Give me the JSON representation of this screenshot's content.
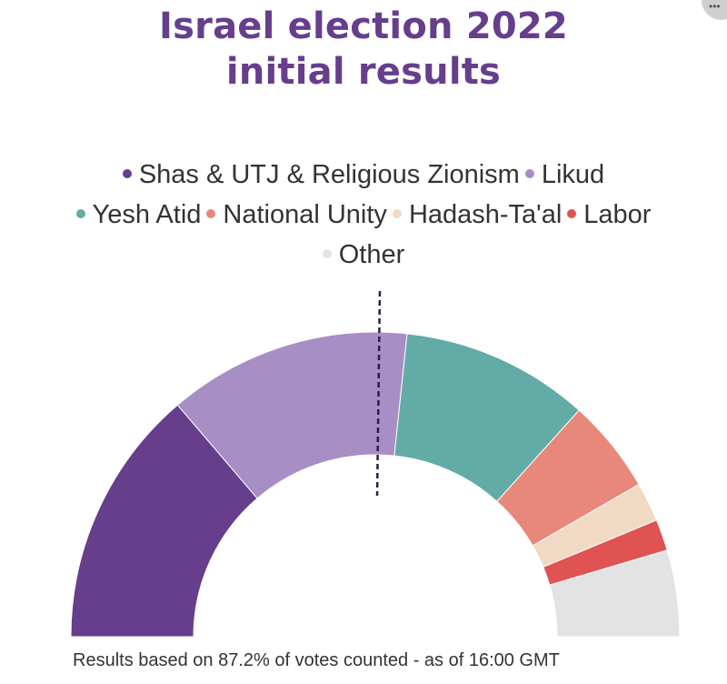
{
  "title": {
    "line1": "Israel election 2022",
    "line2": "initial results"
  },
  "footer": "Results based on 87.2% of votes counted - as of 16:00 GMT",
  "corner_icon": "more-icon",
  "chart_data": {
    "type": "pie",
    "variant": "semicircle-parliament",
    "total": 120,
    "majority_marker": 61,
    "legend_position": "top",
    "series": [
      {
        "name": "Shas & UTJ & Religious Zionism",
        "value": 33,
        "color": "#663e8c"
      },
      {
        "name": "Likud",
        "value": 31,
        "color": "#a78ec4"
      },
      {
        "name": "Yesh Atid",
        "value": 24,
        "color": "#63aba6"
      },
      {
        "name": "National Unity",
        "value": 12,
        "color": "#e8887a"
      },
      {
        "name": "Hadash-Ta'al",
        "value": 5,
        "color": "#f0dac3"
      },
      {
        "name": "Labor",
        "value": 4,
        "color": "#e05353"
      },
      {
        "name": "Other",
        "value": 11,
        "color": "#e3e3e3"
      }
    ]
  }
}
